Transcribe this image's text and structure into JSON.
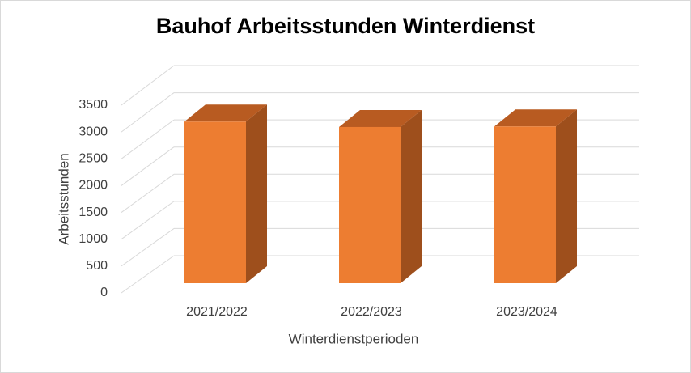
{
  "chart_data": {
    "type": "bar3d",
    "title": "Bauhof Arbeitsstunden Winterdienst",
    "x_label": "Winterdienstperioden",
    "y_label": "Arbeitsstunden",
    "categories": [
      "2021/2022",
      "2022/2023",
      "2023/2024"
    ],
    "values": [
      3000,
      2900,
      2910
    ],
    "color": "#ed7d31",
    "ylim": [
      0,
      3500
    ],
    "yticks": [
      0,
      500,
      1000,
      1500,
      2000,
      2500,
      3000,
      3500
    ],
    "grid": true
  }
}
